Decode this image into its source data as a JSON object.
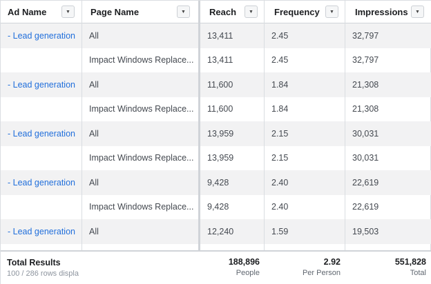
{
  "columns": [
    {
      "label": "Ad Name"
    },
    {
      "label": "Page Name"
    },
    {
      "label": "Reach"
    },
    {
      "label": "Frequency"
    },
    {
      "label": "Impressions"
    }
  ],
  "rows": [
    {
      "ad_name": "- Lead generation",
      "page_name": "All",
      "reach": "13,411",
      "frequency": "2.45",
      "impressions": "32,797"
    },
    {
      "ad_name": "",
      "page_name": "Impact Windows Replace...",
      "reach": "13,411",
      "frequency": "2.45",
      "impressions": "32,797"
    },
    {
      "ad_name": "- Lead generation",
      "page_name": "All",
      "reach": "11,600",
      "frequency": "1.84",
      "impressions": "21,308"
    },
    {
      "ad_name": "",
      "page_name": "Impact Windows Replace...",
      "reach": "11,600",
      "frequency": "1.84",
      "impressions": "21,308"
    },
    {
      "ad_name": "- Lead generation",
      "page_name": "All",
      "reach": "13,959",
      "frequency": "2.15",
      "impressions": "30,031"
    },
    {
      "ad_name": "",
      "page_name": "Impact Windows Replace...",
      "reach": "13,959",
      "frequency": "2.15",
      "impressions": "30,031"
    },
    {
      "ad_name": "- Lead generation",
      "page_name": "All",
      "reach": "9,428",
      "frequency": "2.40",
      "impressions": "22,619"
    },
    {
      "ad_name": "",
      "page_name": "Impact Windows Replace...",
      "reach": "9,428",
      "frequency": "2.40",
      "impressions": "22,619"
    },
    {
      "ad_name": "- Lead generation",
      "page_name": "All",
      "reach": "12,240",
      "frequency": "1.59",
      "impressions": "19,503"
    }
  ],
  "footer": {
    "title": "Total Results",
    "subtitle": "100 / 286 rows displa",
    "reach": {
      "value": "188,896",
      "unit": "People"
    },
    "frequency": {
      "value": "2.92",
      "unit": "Per Person"
    },
    "impressions": {
      "value": "551,828",
      "unit": "Total"
    }
  },
  "colors": {
    "link": "#216fdb",
    "row_shade": "#f2f2f3",
    "border": "#dadde1"
  },
  "icons": {
    "column_menu": "caret-down-icon"
  }
}
